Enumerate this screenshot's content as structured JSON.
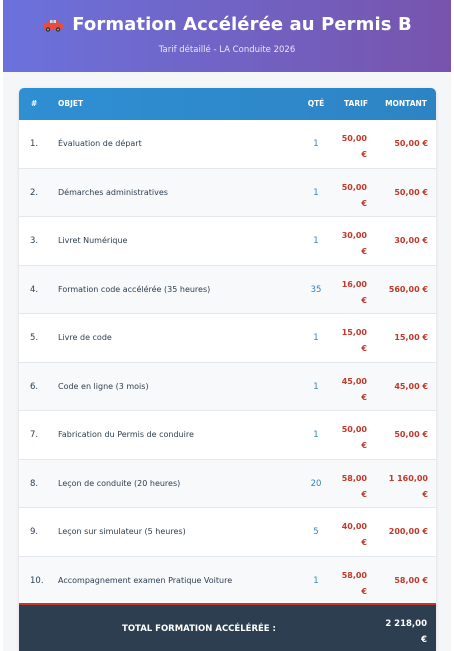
{
  "header": {
    "title": "Formation Accélérée au Permis B",
    "subtitle": "Tarif détaillé - LA Conduite 2026",
    "icon": "car-icon"
  },
  "table": {
    "columns": {
      "num": "#",
      "objet": "OBJET",
      "qte": "QTÉ",
      "tarif": "TARIF",
      "montant": "MONTANT"
    },
    "rows": [
      {
        "num": "1.",
        "objet": "Évaluation de départ",
        "qte": "1",
        "tarif_a": "50,00",
        "tarif_b": "€",
        "montant_a": "50,00 €",
        "montant_b": ""
      },
      {
        "num": "2.",
        "objet": "Démarches administratives",
        "qte": "1",
        "tarif_a": "50,00",
        "tarif_b": "€",
        "montant_a": "50,00 €",
        "montant_b": ""
      },
      {
        "num": "3.",
        "objet": "Livret Numérique",
        "qte": "1",
        "tarif_a": "30,00",
        "tarif_b": "€",
        "montant_a": "30,00 €",
        "montant_b": ""
      },
      {
        "num": "4.",
        "objet": "Formation code accélérée (35 heures)",
        "qte": "35",
        "tarif_a": "16,00",
        "tarif_b": "€",
        "montant_a": "560,00 €",
        "montant_b": ""
      },
      {
        "num": "5.",
        "objet": "Livre de code",
        "qte": "1",
        "tarif_a": "15,00",
        "tarif_b": "€",
        "montant_a": "15,00 €",
        "montant_b": ""
      },
      {
        "num": "6.",
        "objet": "Code en ligne (3 mois)",
        "qte": "1",
        "tarif_a": "45,00",
        "tarif_b": "€",
        "montant_a": "45,00 €",
        "montant_b": ""
      },
      {
        "num": "7.",
        "objet": "Fabrication du Permis de conduire",
        "qte": "1",
        "tarif_a": "50,00",
        "tarif_b": "€",
        "montant_a": "50,00 €",
        "montant_b": ""
      },
      {
        "num": "8.",
        "objet": "Leçon de conduite (20 heures)",
        "qte": "20",
        "tarif_a": "58,00",
        "tarif_b": "€",
        "montant_a": "1 160,00",
        "montant_b": "€"
      },
      {
        "num": "9.",
        "objet": "Leçon sur simulateur (5 heures)",
        "qte": "5",
        "tarif_a": "40,00",
        "tarif_b": "€",
        "montant_a": "200,00 €",
        "montant_b": ""
      },
      {
        "num": "10.",
        "objet": "Accompagnement examen Pratique Voiture",
        "qte": "1",
        "tarif_a": "58,00",
        "tarif_b": "€",
        "montant_a": "58,00 €",
        "montant_b": ""
      }
    ]
  },
  "total": {
    "label": "TOTAL FORMATION ACCÉLÉRÉE :",
    "value_a": "2 218,00",
    "value_b": "€"
  },
  "colors": {
    "header_gradient_start": "#6b72dc",
    "header_gradient_end": "#7754ad",
    "table_header": "#2f8fd3",
    "price_red": "#c0392b",
    "qty_blue": "#2e86c1",
    "total_bg": "#2c3e50"
  }
}
